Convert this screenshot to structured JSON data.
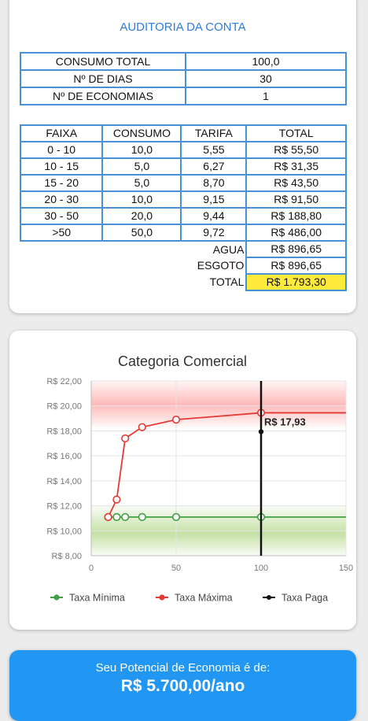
{
  "audit": {
    "title": "AUDITORIA DA CONTA",
    "summary": [
      {
        "label": "CONSUMO TOTAL",
        "value": "100,0"
      },
      {
        "label": "Nº DE DIAS",
        "value": "30"
      },
      {
        "label": "Nº DE ECONOMIAS",
        "value": "1"
      }
    ],
    "tariff_headers": [
      "FAIXA",
      "CONSUMO",
      "TARIFA",
      "TOTAL"
    ],
    "tariff_rows": [
      {
        "faixa": "0 - 10",
        "consumo": "10,0",
        "tarifa": "5,55",
        "total": "R$ 55,50"
      },
      {
        "faixa": "10 - 15",
        "consumo": "5,0",
        "tarifa": "6,27",
        "total": "R$ 31,35"
      },
      {
        "faixa": "15 - 20",
        "consumo": "5,0",
        "tarifa": "8,70",
        "total": "R$ 43,50"
      },
      {
        "faixa": "20 - 30",
        "consumo": "10,0",
        "tarifa": "9,15",
        "total": "R$ 91,50"
      },
      {
        "faixa": "30 - 50",
        "consumo": "20,0",
        "tarifa": "9,44",
        "total": "R$ 188,80"
      },
      {
        "faixa": ">50",
        "consumo": "50,0",
        "tarifa": "9,72",
        "total": "R$ 486,00"
      }
    ],
    "agua_label": "AGUA",
    "agua_value": "R$ 896,65",
    "esgoto_label": "ESGOTO",
    "esgoto_value": "R$ 896,65",
    "total_label": "TOTAL",
    "total_value": "R$ 1.793,30",
    "highlight_color": "#ffeb3b"
  },
  "chart_data": {
    "type": "line",
    "title": "Categoria Comercial",
    "xlim": [
      0,
      150
    ],
    "ylim": [
      8,
      22
    ],
    "x_ticks": [
      "0",
      "50",
      "100",
      "150"
    ],
    "y_ticks": [
      "R$ 8,00",
      "R$ 10,00",
      "R$ 12,00",
      "R$ 14,00",
      "R$ 16,00",
      "R$ 18,00",
      "R$ 20,00",
      "R$ 22,00"
    ],
    "grid": true,
    "legend": "bottom-center",
    "series": [
      {
        "name": "Taxa Mínima",
        "color": "#43a047",
        "points": [
          [
            10,
            11.1
          ],
          [
            15,
            11.1
          ],
          [
            20,
            11.1
          ],
          [
            30,
            11.1
          ],
          [
            50,
            11.1
          ],
          [
            100,
            11.1
          ],
          [
            150,
            11.1
          ]
        ],
        "markers": [
          10,
          15,
          20,
          30,
          50,
          100
        ]
      },
      {
        "name": "Taxa Máxima",
        "color": "#e53935",
        "points": [
          [
            10,
            11.1
          ],
          [
            15,
            12.5
          ],
          [
            20,
            17.4
          ],
          [
            30,
            18.3
          ],
          [
            50,
            18.9
          ],
          [
            100,
            19.45
          ],
          [
            150,
            19.45
          ]
        ],
        "markers": [
          10,
          15,
          20,
          30,
          50,
          100
        ]
      },
      {
        "name": "Taxa Paga",
        "color": "#111111",
        "points": [
          [
            100,
            8
          ],
          [
            100,
            22
          ]
        ],
        "point": [
          100,
          17.93
        ]
      }
    ],
    "annotation": {
      "text": "R$ 17,93",
      "x": 100,
      "y": 17.93
    },
    "bands": [
      {
        "color": "#ff5252",
        "from": 18.3,
        "to": 22
      },
      {
        "color": "#8bc34a",
        "from": 8,
        "to": 12
      }
    ]
  },
  "savings": {
    "caption": "Seu Potencial de Economia é de:",
    "value": "R$ 5.700,00/ano"
  }
}
